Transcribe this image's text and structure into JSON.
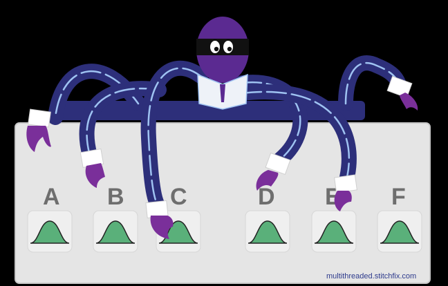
{
  "illustration": {
    "subject": "octopus-at-console",
    "colors": {
      "background": "#000000",
      "panel": "#e5e5e5",
      "panel_border": "#c8c8c8",
      "button_face": "#efefef",
      "bell_curve": "#5ab07a",
      "letter": "#6e6e6e",
      "tentacle": "#2d2f7a",
      "tentacle_stripe": "#9fc3f2",
      "sleeve_cuff": "#ffffff",
      "hand": "#7a2f9a",
      "head": "#5b2a91",
      "mask": "#111111",
      "credit": "#2d3a8c"
    }
  },
  "buttons": [
    {
      "letter": "A"
    },
    {
      "letter": "B"
    },
    {
      "letter": "C"
    },
    {
      "letter": "D"
    },
    {
      "letter": "E"
    },
    {
      "letter": "F"
    }
  ],
  "credit": "multithreaded.stitchfix.com"
}
